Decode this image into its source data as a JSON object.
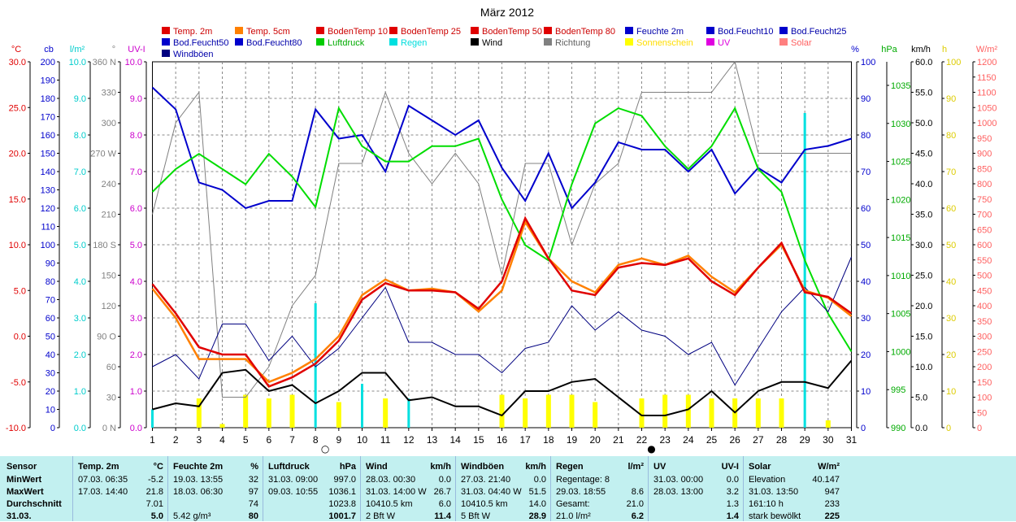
{
  "chart_data": {
    "type": "line",
    "title": "März 2012",
    "x": [
      1,
      2,
      3,
      4,
      5,
      6,
      7,
      8,
      9,
      10,
      11,
      12,
      13,
      14,
      15,
      16,
      17,
      18,
      19,
      20,
      21,
      22,
      23,
      24,
      25,
      26,
      27,
      28,
      29,
      30,
      31
    ],
    "legend": [
      {
        "name": "Temp. 2m",
        "color": "#e00000"
      },
      {
        "name": "Temp. 5cm",
        "color": "#ff8000"
      },
      {
        "name": "BodenTemp 10",
        "color": "#e00000"
      },
      {
        "name": "BodenTemp 25",
        "color": "#e00000"
      },
      {
        "name": "BodenTemp 50",
        "color": "#e00000"
      },
      {
        "name": "BodenTemp 80",
        "color": "#e00000"
      },
      {
        "name": "Feuchte 2m",
        "color": "#0000cc"
      },
      {
        "name": "Bod.Feucht10",
        "color": "#0000cc"
      },
      {
        "name": "Bod.Feucht25",
        "color": "#0000cc"
      },
      {
        "name": "Bod.Feucht50",
        "color": "#0000cc"
      },
      {
        "name": "Bod.Feucht80",
        "color": "#0000cc"
      },
      {
        "name": "Luftdruck",
        "color": "#00cc00"
      },
      {
        "name": "Regen",
        "color": "#00e0e0"
      },
      {
        "name": "Wind",
        "color": "#000000"
      },
      {
        "name": "Richtung",
        "color": "#808080"
      },
      {
        "name": "Sonnenschein",
        "color": "#ffff00"
      },
      {
        "name": "UV",
        "color": "#e000e0"
      },
      {
        "name": "Solar",
        "color": "#ff8080"
      },
      {
        "name": "Windböen",
        "color": "#000080"
      }
    ],
    "axes": [
      {
        "unit": "°C",
        "color": "#e00000",
        "ticks": [
          "30.0",
          "25.0",
          "20.0",
          "15.0",
          "10.0",
          "5.0",
          "0.0",
          "-5.0",
          "-10.0"
        ]
      },
      {
        "unit": "cb",
        "color": "#0000cc",
        "ticks": [
          "200",
          "190",
          "180",
          "170",
          "160",
          "150",
          "140",
          "130",
          "120",
          "110",
          "100",
          "90",
          "80",
          "70",
          "60",
          "50",
          "40",
          "30",
          "20",
          "10",
          "0"
        ]
      },
      {
        "unit": "l/m²",
        "color": "#00cccc",
        "ticks": [
          "10.0",
          "9.0",
          "8.0",
          "7.0",
          "6.0",
          "5.0",
          "4.0",
          "3.0",
          "2.0",
          "1.0",
          "0.0"
        ]
      },
      {
        "unit": "°",
        "color": "#808080",
        "ticks": [
          "360 N",
          "330",
          "300",
          "270 W",
          "240",
          "210",
          "180 S",
          "150",
          "120",
          "90 O",
          "60",
          "30",
          "0 N"
        ]
      },
      {
        "unit": "UV-I",
        "color": "#cc00cc",
        "ticks": [
          "10.0",
          "9.0",
          "8.0",
          "7.0",
          "6.0",
          "5.0",
          "4.0",
          "3.0",
          "2.0",
          "1.0",
          "0.0"
        ]
      },
      {
        "unit": "%",
        "color": "#0000cc",
        "ticks": [
          "100",
          "90",
          "80",
          "70",
          "60",
          "50",
          "40",
          "30",
          "20",
          "10",
          "0"
        ]
      },
      {
        "unit": "hPa",
        "color": "#00aa00",
        "ticks": [
          "1035",
          "1030",
          "1025",
          "1020",
          "1015",
          "1010",
          "1005",
          "1000",
          "995",
          "990"
        ]
      },
      {
        "unit": "km/h",
        "color": "#000000",
        "ticks": [
          "60.0",
          "55.0",
          "50.0",
          "45.0",
          "40.0",
          "35.0",
          "30.0",
          "25.0",
          "20.0",
          "15.0",
          "10.0",
          "5.0",
          "0.0"
        ]
      },
      {
        "unit": "h",
        "color": "#ddcc00",
        "ticks": [
          "100",
          "90",
          "80",
          "70",
          "60",
          "50",
          "40",
          "30",
          "20",
          "10",
          "0"
        ]
      },
      {
        "unit": "W/m²",
        "color": "#ff6060",
        "ticks": [
          "1200",
          "1150",
          "1100",
          "1050",
          "1000",
          "950",
          "900",
          "850",
          "800",
          "750",
          "700",
          "650",
          "600",
          "550",
          "500",
          "450",
          "400",
          "350",
          "300",
          "250",
          "200",
          "150",
          "100",
          "50",
          "0"
        ]
      }
    ],
    "series": [
      {
        "name": "Temp. 2m",
        "axis": "°C",
        "values": [
          5.7,
          2.5,
          -1.2,
          -2.0,
          -2.0,
          -5.5,
          -4.5,
          -3.0,
          -0.5,
          4.0,
          5.8,
          5.0,
          5.0,
          4.8,
          3.0,
          6.0,
          12.9,
          8.5,
          5.0,
          4.5,
          7.5,
          8.0,
          7.8,
          8.5,
          6.0,
          4.5,
          7.5,
          10.2,
          4.8,
          4.3,
          2.5
        ]
      },
      {
        "name": "Temp. 5cm",
        "axis": "°C",
        "values": [
          5.2,
          2.0,
          -2.5,
          -2.5,
          -2.5,
          -5.0,
          -4.0,
          -2.5,
          0.0,
          4.5,
          6.2,
          5.0,
          5.2,
          4.8,
          2.7,
          5.0,
          12.5,
          8.5,
          6.0,
          4.8,
          7.8,
          8.5,
          7.8,
          8.8,
          6.5,
          4.8,
          7.5,
          10.0,
          5.0,
          4.2,
          2.2
        ]
      },
      {
        "name": "Feuchte 2m",
        "axis": "%",
        "values": [
          93,
          87,
          67,
          65,
          60,
          62,
          62,
          87,
          79,
          80,
          70,
          88,
          84,
          80,
          84,
          71,
          62,
          75,
          60,
          67,
          78,
          76,
          76,
          70,
          76,
          64,
          71,
          67,
          76,
          77,
          79
        ]
      },
      {
        "name": "Luftdruck",
        "axis": "hPa",
        "values": [
          1021,
          1024,
          1026,
          1024,
          1022,
          1026,
          1023,
          1019,
          1032,
          1027,
          1025,
          1025,
          1027,
          1027,
          1028,
          1020,
          1014,
          1012,
          1022,
          1030,
          1032,
          1031,
          1027,
          1024,
          1027,
          1032,
          1024,
          1021,
          1012,
          1005,
          1000
        ]
      },
      {
        "name": "Richtung",
        "axis": "°",
        "values": [
          210,
          300,
          330,
          30,
          30,
          60,
          120,
          150,
          260,
          260,
          330,
          270,
          240,
          270,
          240,
          150,
          260,
          260,
          180,
          240,
          260,
          330,
          330,
          330,
          330,
          360,
          270,
          270,
          270,
          270,
          270
        ]
      },
      {
        "name": "Wind",
        "axis": "km/h",
        "values": [
          3.0,
          4.0,
          3.5,
          9.0,
          9.5,
          6.0,
          7.0,
          4.0,
          6.0,
          9.0,
          9.0,
          4.5,
          5.0,
          3.5,
          3.5,
          2.0,
          6.0,
          6.0,
          7.5,
          8.0,
          5.0,
          2.0,
          2.0,
          3.0,
          6.0,
          2.5,
          6.0,
          7.5,
          7.5,
          6.5,
          11.0
        ]
      },
      {
        "name": "Windböen",
        "axis": "km/h",
        "values": [
          10,
          12,
          8,
          17,
          17,
          11,
          15,
          10,
          13,
          18,
          23,
          14,
          14,
          12,
          12,
          9,
          13,
          14,
          20,
          16,
          19,
          16,
          15,
          12,
          14,
          7,
          13,
          19,
          23,
          19,
          28
        ]
      },
      {
        "name": "Regen",
        "axis": "l/m²",
        "values": [
          0.5,
          0,
          0,
          0,
          0,
          0,
          0,
          3.4,
          0,
          1.2,
          0,
          0.8,
          0,
          0,
          0,
          0,
          0,
          0,
          0,
          0,
          0,
          0,
          0,
          0,
          0,
          0,
          0,
          0,
          8.6,
          0,
          0
        ]
      },
      {
        "name": "Sonnenschein",
        "axis": "h",
        "values": [
          0,
          0,
          8,
          1,
          9,
          8,
          9,
          0,
          7,
          0,
          8,
          0,
          0,
          0,
          0,
          9,
          8,
          9,
          9,
          7,
          0,
          8,
          9,
          9,
          8,
          8,
          8,
          8,
          0,
          2,
          0
        ]
      }
    ],
    "moon_markers": [
      {
        "day": 8,
        "symbol": "○"
      },
      {
        "day": 22,
        "symbol": "●"
      }
    ]
  },
  "table": {
    "rows": [
      "Sensor",
      "MinWert",
      "MaxWert",
      "Durchschnitt",
      "31.03."
    ],
    "columns": [
      {
        "head": "Temp. 2m",
        "unit": "°C",
        "cells": [
          [
            "07.03. 06:35",
            "-5.2"
          ],
          [
            "17.03. 14:40",
            "21.8"
          ],
          [
            "",
            "7.01"
          ],
          [
            "",
            "5.0"
          ]
        ]
      },
      {
        "head": "Feuchte 2m",
        "unit": "%",
        "cells": [
          [
            "19.03. 13:55",
            "32"
          ],
          [
            "18.03. 06:30",
            "97"
          ],
          [
            "",
            "74"
          ],
          [
            "5.42 g/m³",
            "80"
          ]
        ]
      },
      {
        "head": "Luftdruck",
        "unit": "hPa",
        "cells": [
          [
            "31.03. 09:00",
            "997.0"
          ],
          [
            "09.03. 10:55",
            "1036.1"
          ],
          [
            "",
            "1023.8"
          ],
          [
            "",
            "1001.7"
          ]
        ]
      },
      {
        "head": "Wind",
        "unit": "km/h",
        "cells": [
          [
            "28.03. 00:30",
            "0.0"
          ],
          [
            "31.03. 14:00  W",
            "26.7"
          ],
          [
            "10410.5 km",
            "6.0"
          ],
          [
            "2 Bft W",
            "11.4"
          ]
        ]
      },
      {
        "head": "Windböen",
        "unit": "km/h",
        "cells": [
          [
            "27.03. 21:40",
            "0.0"
          ],
          [
            "31.03. 04:40  W",
            "51.5"
          ],
          [
            "10410.5 km",
            "14.0"
          ],
          [
            "5 Bft W",
            "28.9"
          ]
        ]
      },
      {
        "head": "Regen",
        "unit": "l/m²",
        "cells": [
          [
            "Regentage: 8",
            ""
          ],
          [
            "29.03. 18:55",
            "8.6"
          ],
          [
            "Gesamt:",
            "21.0"
          ],
          [
            "21.0 l/m²",
            "6.2"
          ]
        ]
      },
      {
        "head": "UV",
        "unit": "UV-I",
        "cells": [
          [
            "31.03. 00:00",
            "0.0"
          ],
          [
            "28.03. 13:00",
            "3.2"
          ],
          [
            "",
            "1.3"
          ],
          [
            "",
            "1.4"
          ]
        ]
      },
      {
        "head": "Solar",
        "unit": "W/m²",
        "cells": [
          [
            "Elevation",
            "40.147"
          ],
          [
            "31.03. 13:50",
            "947"
          ],
          [
            "161:10 h",
            "233"
          ],
          [
            "stark bewölkt",
            "225"
          ]
        ]
      }
    ]
  }
}
